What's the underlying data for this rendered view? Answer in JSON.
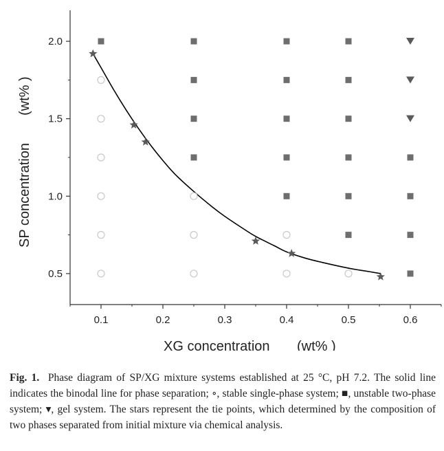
{
  "chart_data": {
    "type": "scatter",
    "xlabel": "XG concentration",
    "xlabel_unit": "(wt% )",
    "ylabel": "SP concentration",
    "ylabel_unit": "(wt% )",
    "xlim": [
      0.05,
      0.65
    ],
    "ylim": [
      0.3,
      2.2
    ],
    "xticks": [
      0.1,
      0.2,
      0.3,
      0.4,
      0.5,
      0.6
    ],
    "xtick_labels": [
      "0.1",
      "0.2",
      "0.3",
      "0.4",
      "0.5",
      "0.6"
    ],
    "yticks": [
      0.5,
      1.0,
      1.5,
      2.0
    ],
    "ytick_labels": [
      "0.5",
      "1.0",
      "1.5",
      "2.0"
    ],
    "series": [
      {
        "name": "stable single-phase system",
        "marker": "circle-open",
        "color": "#c8c8c8",
        "points": [
          [
            0.1,
            1.75
          ],
          [
            0.1,
            1.5
          ],
          [
            0.1,
            1.25
          ],
          [
            0.1,
            1.0
          ],
          [
            0.1,
            0.75
          ],
          [
            0.1,
            0.5
          ],
          [
            0.25,
            1.0
          ],
          [
            0.25,
            0.75
          ],
          [
            0.25,
            0.5
          ],
          [
            0.4,
            0.75
          ],
          [
            0.4,
            0.5
          ],
          [
            0.5,
            0.5
          ]
        ]
      },
      {
        "name": "unstable two-phase system",
        "marker": "square",
        "color": "#6e6e6e",
        "points": [
          [
            0.1,
            2.0
          ],
          [
            0.25,
            2.0
          ],
          [
            0.25,
            1.75
          ],
          [
            0.25,
            1.5
          ],
          [
            0.25,
            1.25
          ],
          [
            0.4,
            2.0
          ],
          [
            0.4,
            1.75
          ],
          [
            0.4,
            1.5
          ],
          [
            0.4,
            1.25
          ],
          [
            0.4,
            1.0
          ],
          [
            0.5,
            2.0
          ],
          [
            0.5,
            1.75
          ],
          [
            0.5,
            1.5
          ],
          [
            0.5,
            1.25
          ],
          [
            0.5,
            1.0
          ],
          [
            0.5,
            0.75
          ],
          [
            0.6,
            1.25
          ],
          [
            0.6,
            1.0
          ],
          [
            0.6,
            0.75
          ],
          [
            0.6,
            0.5
          ]
        ]
      },
      {
        "name": "gel system",
        "marker": "triangle-down",
        "color": "#5a5a5a",
        "points": [
          [
            0.6,
            2.0
          ],
          [
            0.6,
            1.75
          ],
          [
            0.6,
            1.5
          ]
        ]
      },
      {
        "name": "tie points",
        "marker": "star",
        "color": "#5a5a5a",
        "points": [
          [
            0.087,
            1.92
          ],
          [
            0.153,
            1.46
          ],
          [
            0.172,
            1.35
          ],
          [
            0.35,
            0.71
          ],
          [
            0.408,
            0.63
          ],
          [
            0.552,
            0.48
          ]
        ]
      }
    ],
    "binodal_line": {
      "name": "binodal line",
      "color": "#000000",
      "points": [
        [
          0.087,
          1.92
        ],
        [
          0.1,
          1.83
        ],
        [
          0.12,
          1.69
        ],
        [
          0.14,
          1.56
        ],
        [
          0.16,
          1.44
        ],
        [
          0.18,
          1.33
        ],
        [
          0.2,
          1.23
        ],
        [
          0.22,
          1.14
        ],
        [
          0.25,
          1.03
        ],
        [
          0.28,
          0.93
        ],
        [
          0.3,
          0.87
        ],
        [
          0.33,
          0.79
        ],
        [
          0.35,
          0.74
        ],
        [
          0.38,
          0.68
        ],
        [
          0.4,
          0.64
        ],
        [
          0.43,
          0.6
        ],
        [
          0.46,
          0.57
        ],
        [
          0.5,
          0.535
        ],
        [
          0.53,
          0.515
        ],
        [
          0.552,
          0.5
        ]
      ]
    }
  },
  "caption": {
    "label": "Fig. 1.",
    "text": "Phase diagram of SP/XG mixture systems established at 25 °C, pH 7.2. The solid line indicates the binodal line for phase separation; ∘, stable single-phase system; ■, unstable two-phase system; ▾, gel system. The stars represent the tie points, which determined by the composition of two phases separated from initial mixture via chemical analysis."
  }
}
